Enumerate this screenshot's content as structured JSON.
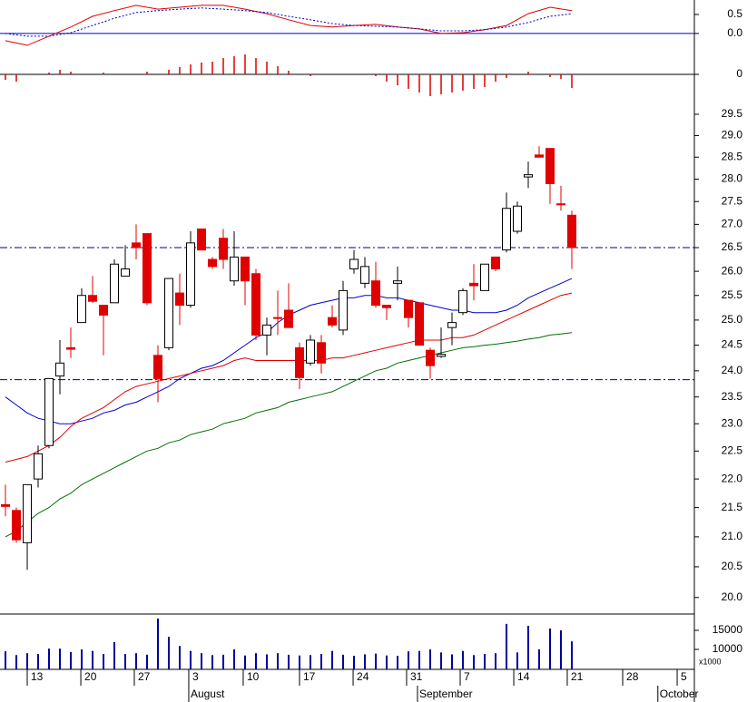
{
  "chart_data": [
    {
      "type": "line",
      "ylim": [
        -0.55,
        0.88
      ],
      "yticks": [
        0.5,
        {
          "value": 0,
          "label": "0.0"
        }
      ],
      "hlines": [
        0
      ],
      "hline_color": "#0000cc",
      "hline_style": "solid",
      "series": [
        {
          "color": "#dd0000",
          "line_style": "solid",
          "x": [
            0,
            2,
            4,
            6,
            8,
            10,
            12,
            14,
            16,
            18,
            20,
            22,
            24,
            26,
            28,
            30,
            32,
            34,
            36,
            38,
            40,
            42,
            44,
            46,
            48,
            50,
            52
          ],
          "values": [
            -0.19,
            -0.31,
            -0.07,
            0.17,
            0.45,
            0.6,
            0.74,
            0.64,
            0.69,
            0.74,
            0.74,
            0.64,
            0.52,
            0.36,
            0.21,
            0.17,
            0.21,
            0.24,
            0.17,
            0.12,
            0.0,
            0.02,
            0.1,
            0.21,
            0.52,
            0.69,
            0.6
          ]
        },
        {
          "color": "#0000cc",
          "line_style": "dotted",
          "x": [
            0,
            2,
            4,
            6,
            8,
            10,
            12,
            14,
            16,
            18,
            20,
            22,
            24,
            26,
            28,
            30,
            32,
            34,
            36,
            38,
            40,
            42,
            44,
            46,
            48,
            50,
            52
          ],
          "values": [
            0,
            -0.07,
            -0.07,
            0.02,
            0.21,
            0.4,
            0.55,
            0.6,
            0.64,
            0.67,
            0.64,
            0.6,
            0.55,
            0.45,
            0.36,
            0.26,
            0.21,
            0.19,
            0.17,
            0.12,
            0.07,
            0.07,
            0.1,
            0.17,
            0.29,
            0.45,
            0.52
          ]
        }
      ]
    },
    {
      "type": "bar",
      "ylim": [
        -0.26,
        0.22
      ],
      "yticks": [
        0
      ],
      "hlines": [
        0
      ],
      "hline_color": "#000000",
      "hline_style": "solid",
      "color": "#dd0000",
      "values": [
        -0.06,
        -0.08,
        0,
        0,
        0.02,
        0.05,
        0.03,
        0,
        0,
        0.02,
        0,
        0,
        0,
        0.03,
        0,
        0.05,
        0.08,
        0.11,
        0.13,
        0.14,
        0.18,
        0.2,
        0.22,
        0.18,
        0.14,
        0.09,
        0.04,
        0,
        -0.02,
        0,
        0,
        0,
        0,
        0,
        -0.02,
        -0.08,
        -0.12,
        -0.16,
        -0.2,
        -0.24,
        -0.22,
        -0.2,
        -0.18,
        -0.16,
        -0.14,
        -0.08,
        -0.04,
        0,
        0.03,
        0,
        -0.03,
        -0.05,
        -0.15
      ]
    },
    {
      "type": "candlestick",
      "log_scale": true,
      "xlim": [
        -0.5,
        63.25
      ],
      "ylim": [
        19.75,
        29.89
      ],
      "yticks": [
        {
          "value": 20,
          "label": "20.0"
        },
        20.5,
        {
          "value": 21,
          "label": "21.0"
        },
        21.5,
        {
          "value": 22,
          "label": "22.0"
        },
        22.5,
        {
          "value": 23,
          "label": "23.0"
        },
        23.5,
        {
          "value": 24,
          "label": "24.0"
        },
        24.5,
        {
          "value": 25,
          "label": "25.0"
        },
        25.5,
        {
          "value": 26,
          "label": "26.0"
        },
        26.5,
        {
          "value": 27,
          "label": "27.0"
        },
        27.5,
        {
          "value": 28,
          "label": "28.0"
        },
        28.5,
        {
          "value": 29,
          "label": "29.0"
        },
        29.5
      ],
      "hlines": [
        26.5,
        23.83
      ],
      "hline_color": "#000080",
      "hline_style": "dashdot",
      "up_color": "#ffffff",
      "down_color": "#e00000",
      "open": [
        21.55,
        21.45,
        20.9,
        22.0,
        22.6,
        23.9,
        24.45,
        24.95,
        25.5,
        25.3,
        25.35,
        25.9,
        26.6,
        26.8,
        24.3,
        24.45,
        25.55,
        25.3,
        26.9,
        26.25,
        26.7,
        25.8,
        26.3,
        25.95,
        24.7,
        25.05,
        25.2,
        24.45,
        24.15,
        24.55,
        25.05,
        24.8,
        26.05,
        25.75,
        25.8,
        25.3,
        25.75,
        25.4,
        25.35,
        24.4,
        24.28,
        24.85,
        25.15,
        25.75,
        25.6,
        26.3,
        26.45,
        26.85,
        28.05,
        28.55,
        28.7,
        27.45,
        27.2
      ],
      "high": [
        21.9,
        21.5,
        21.9,
        22.6,
        23.85,
        24.6,
        24.85,
        25.65,
        25.9,
        25.3,
        26.25,
        26.55,
        27.0,
        26.8,
        24.5,
        25.85,
        25.95,
        26.85,
        26.9,
        26.3,
        26.9,
        26.85,
        26.3,
        26.05,
        25.05,
        25.6,
        25.75,
        24.55,
        24.7,
        24.7,
        25.3,
        25.8,
        26.45,
        26.3,
        26.2,
        25.3,
        26.1,
        25.4,
        25.35,
        24.45,
        24.85,
        25.15,
        25.65,
        26.15,
        26.15,
        26.3,
        27.7,
        27.5,
        28.4,
        28.75,
        28.7,
        27.85,
        27.3
      ],
      "low": [
        21.35,
        20.9,
        20.45,
        21.85,
        22.55,
        23.55,
        24.25,
        24.95,
        25.35,
        24.3,
        25.35,
        25.9,
        26.25,
        25.3,
        23.4,
        24.4,
        24.9,
        25.25,
        26.45,
        26.05,
        26.05,
        25.7,
        25.3,
        24.6,
        24.3,
        24.7,
        24.85,
        23.65,
        24.1,
        23.95,
        24.85,
        24.7,
        25.95,
        25.65,
        25.25,
        25.0,
        25.4,
        24.85,
        24.5,
        23.85,
        24.25,
        24.5,
        25.1,
        25.4,
        25.6,
        26.0,
        26.4,
        26.8,
        27.8,
        28.5,
        27.45,
        27.3,
        26.05
      ],
      "close": [
        21.52,
        20.95,
        21.9,
        22.45,
        23.85,
        24.15,
        24.42,
        25.5,
        25.38,
        25.1,
        26.15,
        26.05,
        26.5,
        25.35,
        23.85,
        25.85,
        25.3,
        26.6,
        26.45,
        26.1,
        26.25,
        26.3,
        25.8,
        24.7,
        24.9,
        25.04,
        24.85,
        23.87,
        24.6,
        24.15,
        24.9,
        25.6,
        26.25,
        26.1,
        25.3,
        25.25,
        25.8,
        25.05,
        24.5,
        24.1,
        24.32,
        24.95,
        25.6,
        25.7,
        26.15,
        26.05,
        27.35,
        27.4,
        28.1,
        28.5,
        27.9,
        27.43,
        26.5
      ],
      "ma_series": [
        {
          "color": "#0000cc",
          "values": [
            23.5,
            23.35,
            23.2,
            23.1,
            23.05,
            23.0,
            23.0,
            23.05,
            23.1,
            23.2,
            23.25,
            23.35,
            23.4,
            23.5,
            23.6,
            23.7,
            23.85,
            23.95,
            24.05,
            24.1,
            24.2,
            24.35,
            24.5,
            24.65,
            24.75,
            24.95,
            25.1,
            25.2,
            25.3,
            25.35,
            25.4,
            25.45,
            25.45,
            25.5,
            25.5,
            25.45,
            25.45,
            25.4,
            25.35,
            25.3,
            25.25,
            25.2,
            25.2,
            25.15,
            25.15,
            25.15,
            25.2,
            25.3,
            25.45,
            25.55,
            25.65,
            25.75,
            25.85
          ]
        },
        {
          "color": "#e00000",
          "values": [
            22.3,
            22.35,
            22.4,
            22.5,
            22.6,
            22.75,
            22.95,
            23.1,
            23.2,
            23.3,
            23.45,
            23.6,
            23.7,
            23.75,
            23.8,
            23.85,
            23.9,
            23.95,
            24.0,
            24.05,
            24.1,
            24.2,
            24.25,
            24.2,
            24.2,
            24.2,
            24.2,
            24.2,
            24.2,
            24.2,
            24.25,
            24.25,
            24.3,
            24.35,
            24.4,
            24.45,
            24.5,
            24.55,
            24.6,
            24.6,
            24.6,
            24.65,
            24.65,
            24.7,
            24.8,
            24.9,
            25.0,
            25.1,
            25.2,
            25.3,
            25.4,
            25.5,
            25.55
          ]
        },
        {
          "color": "#007000",
          "values": [
            21.0,
            21.1,
            21.25,
            21.4,
            21.5,
            21.65,
            21.75,
            21.9,
            22.0,
            22.1,
            22.2,
            22.3,
            22.4,
            22.5,
            22.55,
            22.65,
            22.7,
            22.8,
            22.85,
            22.9,
            23.0,
            23.05,
            23.1,
            23.2,
            23.25,
            23.3,
            23.4,
            23.45,
            23.5,
            23.55,
            23.6,
            23.7,
            23.8,
            23.9,
            24.0,
            24.05,
            24.15,
            24.2,
            24.25,
            24.3,
            24.35,
            24.4,
            24.45,
            24.47,
            24.5,
            24.52,
            24.55,
            24.58,
            24.62,
            24.65,
            24.7,
            24.72,
            24.75
          ]
        }
      ]
    },
    {
      "type": "bar",
      "ylim": [
        4760,
        19290
      ],
      "yticks": [
        10000,
        15000
      ],
      "color": "#0000a0",
      "unit_label": "x1000",
      "values": [
        9500,
        8500,
        9000,
        8800,
        10200,
        10200,
        9300,
        10000,
        9600,
        8800,
        11900,
        8800,
        9000,
        8600,
        18100,
        13300,
        10900,
        9600,
        9000,
        8500,
        8600,
        10000,
        8400,
        9000,
        8700,
        9000,
        8600,
        8400,
        8500,
        8800,
        9600,
        8600,
        8300,
        8700,
        8900,
        8400,
        8300,
        9500,
        9600,
        10000,
        9200,
        8700,
        9600,
        8500,
        8800,
        9000,
        16700,
        9200,
        16200,
        10000,
        15500,
        15000,
        12100
      ],
      "xticks": [
        {
          "value": 2,
          "label": "13"
        },
        {
          "value": 6.92,
          "label": "20"
        },
        {
          "value": 11.83,
          "label": "27"
        },
        {
          "value": 16.83,
          "label": "3"
        },
        {
          "value": 21.83,
          "label": "10"
        },
        {
          "value": 27,
          "label": "17"
        },
        {
          "value": 31.92,
          "label": "24"
        },
        {
          "value": 36.83,
          "label": "31"
        },
        {
          "value": 41.75,
          "label": "7"
        },
        {
          "value": 46.67,
          "label": "14"
        },
        {
          "value": 51.58,
          "label": "21"
        },
        {
          "value": 56.67,
          "label": "28"
        },
        {
          "value": 61.67,
          "label": "5"
        }
      ],
      "months": [
        {
          "value": 16.83,
          "label": "August"
        },
        {
          "value": 37.83,
          "label": "September"
        },
        {
          "value": 59.9,
          "label": "October"
        }
      ]
    }
  ]
}
